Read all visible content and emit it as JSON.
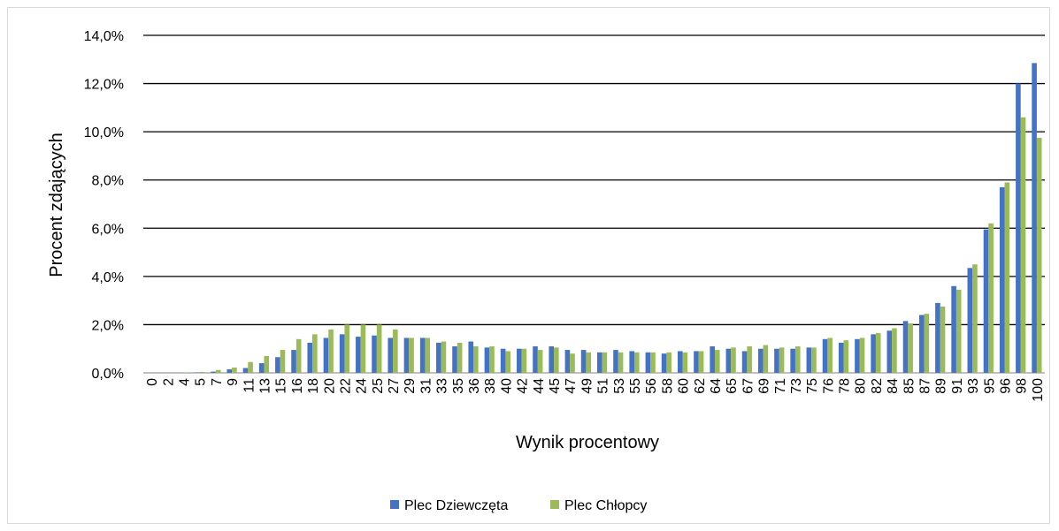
{
  "chart_data": {
    "type": "bar",
    "xlabel": "Wynik procentowy",
    "ylabel": "Procent zdających",
    "ylim": [
      0,
      14
    ],
    "y_ticks": [
      "0,0%",
      "2,0%",
      "4,0%",
      "6,0%",
      "8,0%",
      "10,0%",
      "12,0%",
      "14,0%"
    ],
    "grid": true,
    "legend_position": "bottom",
    "categories": [
      "0",
      "2",
      "4",
      "5",
      "7",
      "9",
      "11",
      "13",
      "15",
      "16",
      "18",
      "20",
      "22",
      "24",
      "25",
      "27",
      "29",
      "31",
      "33",
      "35",
      "36",
      "38",
      "40",
      "42",
      "44",
      "45",
      "47",
      "49",
      "51",
      "53",
      "55",
      "56",
      "58",
      "60",
      "62",
      "64",
      "65",
      "67",
      "69",
      "71",
      "73",
      "75",
      "76",
      "78",
      "80",
      "82",
      "84",
      "85",
      "87",
      "89",
      "91",
      "93",
      "95",
      "96",
      "98",
      "100"
    ],
    "series": [
      {
        "name": "Plec Dziewczęta",
        "color": "#4472c4",
        "values": [
          0.0,
          0.0,
          0.0,
          0.02,
          0.05,
          0.15,
          0.2,
          0.4,
          0.65,
          0.95,
          1.25,
          1.45,
          1.6,
          1.5,
          1.55,
          1.45,
          1.45,
          1.45,
          1.25,
          1.1,
          1.3,
          1.05,
          1.0,
          1.0,
          1.1,
          1.1,
          0.95,
          0.95,
          0.85,
          0.95,
          0.9,
          0.85,
          0.8,
          0.9,
          0.9,
          1.1,
          1.0,
          0.9,
          1.0,
          1.0,
          1.0,
          1.05,
          1.4,
          1.25,
          1.4,
          1.6,
          1.75,
          2.15,
          2.4,
          2.9,
          3.6,
          4.35,
          5.95,
          7.7,
          12.0,
          12.85
        ]
      },
      {
        "name": "Plec Chłopcy",
        "color": "#9bbb59",
        "values": [
          0.0,
          0.0,
          0.01,
          0.04,
          0.12,
          0.22,
          0.45,
          0.7,
          0.95,
          1.4,
          1.6,
          1.8,
          2.0,
          2.0,
          2.0,
          1.8,
          1.45,
          1.45,
          1.3,
          1.25,
          1.1,
          1.1,
          0.9,
          1.0,
          0.95,
          1.05,
          0.8,
          0.85,
          0.85,
          0.85,
          0.85,
          0.85,
          0.85,
          0.85,
          0.9,
          0.95,
          1.05,
          1.1,
          1.15,
          1.05,
          1.1,
          1.05,
          1.45,
          1.35,
          1.45,
          1.65,
          1.85,
          2.05,
          2.45,
          2.75,
          3.45,
          4.5,
          6.2,
          7.9,
          10.6,
          9.75
        ]
      }
    ]
  }
}
